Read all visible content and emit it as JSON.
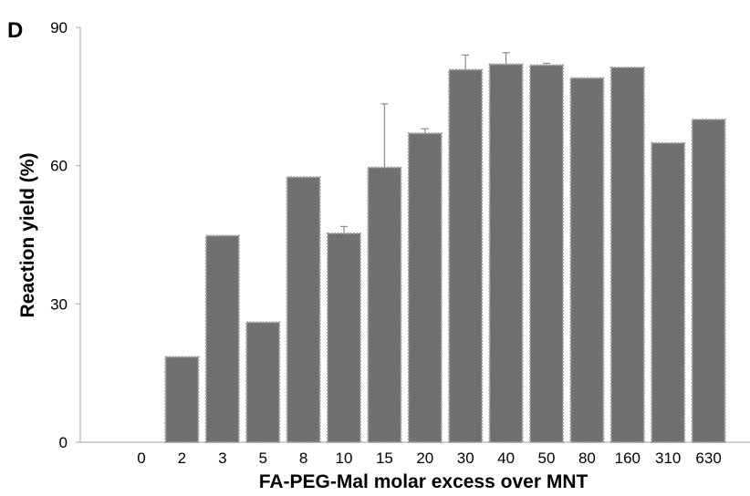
{
  "chart_data": {
    "type": "bar",
    "panel_label": "D",
    "xlabel": "FA-PEG-Mal molar excess over MNT",
    "ylabel": "Reaction yield (%)",
    "categories": [
      "0",
      "2",
      "3",
      "5",
      "8",
      "10",
      "15",
      "20",
      "30",
      "40",
      "50",
      "80",
      "160",
      "310",
      "630"
    ],
    "values": [
      0,
      18.5,
      44.8,
      26,
      57.5,
      45.3,
      59.6,
      67,
      80.8,
      82,
      81.8,
      79,
      81.3,
      64.9,
      70
    ],
    "error_upper": [
      0,
      0,
      0,
      0,
      0,
      1.5,
      13.8,
      1,
      3.2,
      2.5,
      0.4,
      0,
      0,
      0,
      0
    ],
    "ylim": [
      0,
      90
    ],
    "yticks": [
      "0",
      "30",
      "60",
      "90"
    ],
    "grid": false,
    "legend": "none",
    "colors": {
      "bar_fill": "#707070",
      "bar_border": "#9e9e9e",
      "axis": "#b3b3b3",
      "error": "#8c8c8c"
    }
  }
}
